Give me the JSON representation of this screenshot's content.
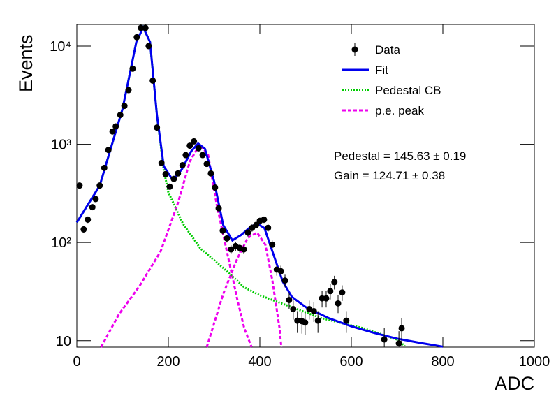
{
  "chart_data": {
    "type": "scatter",
    "x_label": "ADC",
    "y_label": "Events",
    "xlim": [
      0,
      1000
    ],
    "ylim": [
      8.6,
      16600
    ],
    "log_y": true,
    "xticks": [
      0,
      200,
      400,
      600,
      800,
      1000
    ],
    "yticks": [
      {
        "value": 10,
        "label": "10"
      },
      {
        "value": 100,
        "label": "10²"
      },
      {
        "value": 1000,
        "label": "10³"
      },
      {
        "value": 10000,
        "label": "10⁴"
      }
    ],
    "legend": "upper right",
    "series": [
      {
        "name": "Data",
        "type": "errorbar",
        "color": "#000000",
        "x": [
          6,
          15,
          24,
          34,
          41,
          50,
          60,
          69,
          78,
          85,
          95,
          104,
          113,
          122,
          131,
          140,
          150,
          157,
          166,
          175,
          185,
          194,
          203,
          212,
          221,
          231,
          238,
          247,
          256,
          266,
          275,
          284,
          293,
          302,
          310,
          319,
          328,
          337,
          347,
          356,
          365,
          374,
          383,
          392,
          400,
          409,
          418,
          427,
          437,
          446,
          455,
          464,
          473,
          482,
          492,
          499,
          508,
          518,
          527,
          536,
          545,
          554,
          563,
          571,
          580,
          589,
          672,
          704,
          710
        ],
        "values": [
          380,
          136,
          171,
          229,
          277,
          380,
          575,
          875,
          1350,
          1520,
          1990,
          2460,
          3560,
          5890,
          12300,
          15300,
          15300,
          10000,
          4450,
          1480,
          645,
          497,
          370,
          444,
          505,
          613,
          776,
          967,
          1070,
          910,
          776,
          631,
          505,
          363,
          223,
          132,
          110,
          85,
          92,
          88,
          85,
          126,
          141,
          151,
          166,
          171,
          141,
          95,
          53,
          51,
          41,
          26,
          21,
          16,
          15.8,
          15.3,
          21,
          20,
          16,
          27,
          27,
          32,
          39.5,
          24,
          31,
          16,
          10.3,
          9.4,
          13.4
        ],
        "errors": [
          19,
          12,
          13,
          15,
          17,
          19,
          24,
          30,
          37,
          39,
          45,
          50,
          60,
          77,
          111,
          124,
          124,
          100,
          67,
          38,
          25,
          22,
          19,
          21,
          22,
          25,
          28,
          31,
          33,
          30,
          28,
          25,
          22,
          19,
          15,
          11,
          10,
          9,
          10,
          9,
          9,
          11,
          12,
          12,
          13,
          13,
          12,
          10,
          7,
          7,
          6,
          5,
          4.6,
          4,
          4,
          3.9,
          4.6,
          4.5,
          4,
          5.2,
          5.2,
          5.7,
          6.3,
          4.9,
          5.6,
          4,
          3.2,
          3.1,
          3.7
        ]
      },
      {
        "name": "Fit",
        "type": "line",
        "style": "solid",
        "color": "#0000ee",
        "x": [
          0,
          50,
          100,
          130,
          145,
          160,
          175,
          190,
          210,
          230,
          250,
          265,
          280,
          300,
          320,
          340,
          360,
          380,
          395,
          410,
          430,
          450,
          470,
          500,
          550,
          600,
          650,
          700,
          750,
          800
        ],
        "values": [
          160,
          380,
          2300,
          11000,
          15500,
          11000,
          2000,
          600,
          430,
          560,
          850,
          1020,
          900,
          420,
          150,
          105,
          120,
          145,
          155,
          140,
          75,
          40,
          28,
          22,
          17,
          14,
          12,
          10.5,
          9.5,
          8.7
        ]
      },
      {
        "name": "Pedestal CB",
        "type": "line",
        "style": "dotted",
        "color": "#00cc00",
        "x": [
          0,
          50,
          100,
          130,
          145,
          160,
          175,
          190,
          200,
          232,
          270,
          320,
          366,
          400,
          458,
          534,
          626,
          702,
          717
        ],
        "values": [
          160,
          380,
          2300,
          11000,
          15500,
          11000,
          2000,
          550,
          325,
          155,
          87,
          55,
          35,
          29,
          23,
          17,
          13.4,
          10.2,
          8.8
        ]
      },
      {
        "name": "p.e. peak",
        "type": "line",
        "style": "dashed",
        "color": "#ee00ee",
        "x": [
          53,
          92,
          137,
          183,
          221,
          247,
          269,
          287,
          305,
          328,
          351,
          366,
          382,
          null,
          284,
          320,
          351,
          374,
          394,
          412,
          427,
          443,
          447
        ],
        "values": [
          8.6,
          18.6,
          36,
          81,
          253,
          670,
          1000,
          776,
          253,
          81,
          26,
          13.4,
          8.6,
          null,
          8.6,
          30,
          69,
          112,
          126,
          95,
          42,
          13.4,
          8.6
        ]
      }
    ],
    "annotations": [
      "Pedestal = 145.63 ± 0.19",
      "Gain = 124.71 ± 0.38"
    ]
  }
}
